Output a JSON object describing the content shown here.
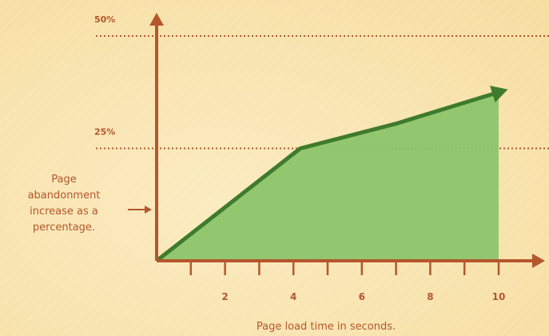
{
  "chart_data": {
    "type": "area",
    "xlabel": "Page load time in seconds.",
    "ylabel_annotation": [
      "Page",
      "abandonment",
      "increase as a",
      "percentage."
    ],
    "x_ticks": [
      2,
      4,
      6,
      8,
      10
    ],
    "x_minor_ticks": [
      1,
      2,
      3,
      4,
      5,
      6,
      7,
      8,
      9,
      10
    ],
    "y_ticks": [
      {
        "value": 25,
        "label": "25%"
      },
      {
        "value": 50,
        "label": "50%"
      }
    ],
    "xlim": [
      0,
      11.5
    ],
    "ylim": [
      0,
      50
    ],
    "series": [
      {
        "x": [
          0,
          4.2,
          7,
          10
        ],
        "y": [
          0,
          25,
          30.5,
          37.5
        ]
      }
    ],
    "colors": {
      "axis": "#b4572d",
      "line": "#3f7b2c",
      "fill": "#8cc56c",
      "grid": "#b4572d"
    },
    "grid": "horizontal-dotted"
  }
}
